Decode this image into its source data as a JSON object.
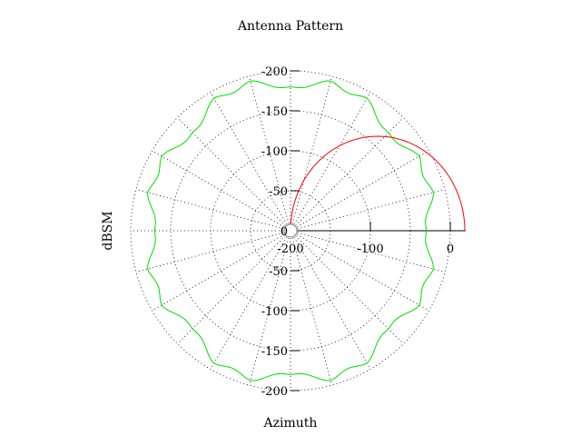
{
  "chart_data": {
    "type": "polar",
    "title": "Antenna Pattern",
    "xlabel": "Azimuth",
    "ylabel": "dBSM",
    "radial_range": [
      -200,
      20
    ],
    "radial_grid": [
      -200,
      -150,
      -100,
      -50,
      0
    ],
    "angular_grid_step_deg": 15,
    "radial_axis_tick_labels": [
      "-200",
      "-150",
      "-100",
      "-50",
      "0",
      "-50",
      "-100",
      "-150",
      "-200"
    ],
    "horizontal_axis_tick_labels": [
      "-200",
      "-100",
      "0"
    ],
    "grid": true,
    "series": [
      {
        "color": "#00dd00",
        "pattern": {
          "base_db": -10,
          "lobe_depth_db": 10,
          "lobes_per_turn": 24,
          "valley_depth_db": 15,
          "valley_count_per_turn": 8,
          "extremes_db": [
            {
              "azimuth_deg": 0,
              "value": -15
            },
            {
              "azimuth_deg": 90,
              "value": 5
            },
            {
              "azimuth_deg": 180,
              "value": -15
            },
            {
              "azimuth_deg": 270,
              "value": 5
            }
          ]
        }
      },
      {
        "color": "#ff0000",
        "arc": {
          "azimuth_start_deg": 0,
          "azimuth_end_deg": 180,
          "radius_db": 20,
          "center_db": -90
        }
      }
    ]
  }
}
